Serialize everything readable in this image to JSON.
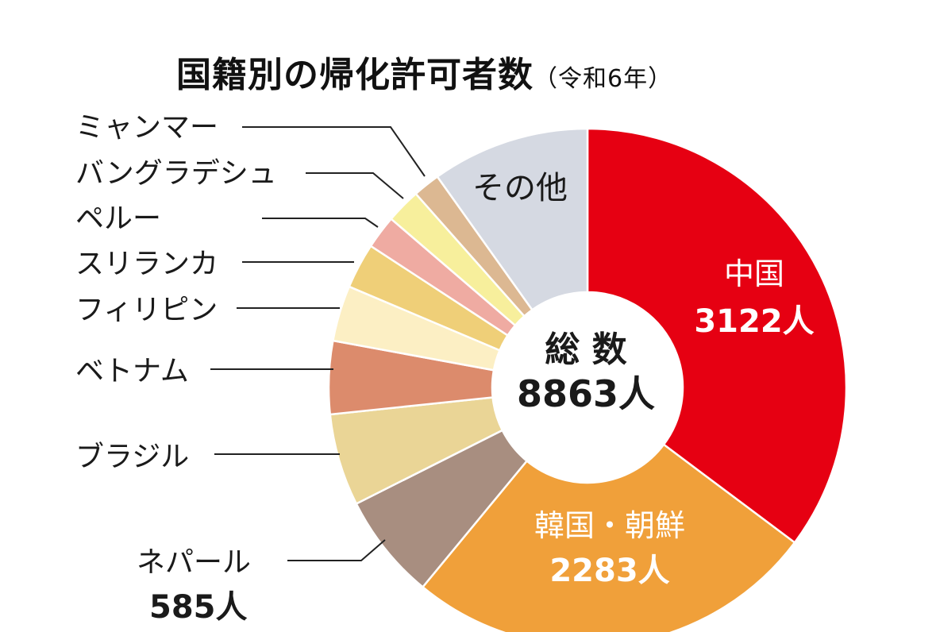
{
  "title": "国籍別の帰化許可者数",
  "subtitle": "（令和6年）",
  "center": {
    "label": "総 数",
    "value": "8863",
    "unit": "人"
  },
  "chart_data": {
    "type": "pie",
    "title": "国籍別の帰化許可者数（令和6年）",
    "total": 8863,
    "unit": "人",
    "slices": [
      {
        "name": "中国",
        "value": 3122,
        "color": "#e60012",
        "value_label": "3122"
      },
      {
        "name": "韓国・朝鮮",
        "value": 2283,
        "color": "#f0a03a",
        "value_label": "2283"
      },
      {
        "name": "ネパール",
        "value": 585,
        "color": "#a88e80",
        "value_label": "585"
      },
      {
        "name": "ブラジル",
        "value": 510,
        "color": "#ead596"
      },
      {
        "name": "ベトナム",
        "value": 404,
        "color": "#dc8b6c"
      },
      {
        "name": "フィリピン",
        "value": 308,
        "color": "#fcefc4"
      },
      {
        "name": "スリランカ",
        "value": 251,
        "color": "#efcf78"
      },
      {
        "name": "ペルー",
        "value": 185,
        "color": "#efaba2"
      },
      {
        "name": "バングラデシュ",
        "value": 192,
        "color": "#f7ef9c"
      },
      {
        "name": "ミャンマー",
        "value": 150,
        "color": "#dcb892"
      },
      {
        "name": "その他",
        "value": 873,
        "color": "#d5d9e2"
      }
    ]
  }
}
